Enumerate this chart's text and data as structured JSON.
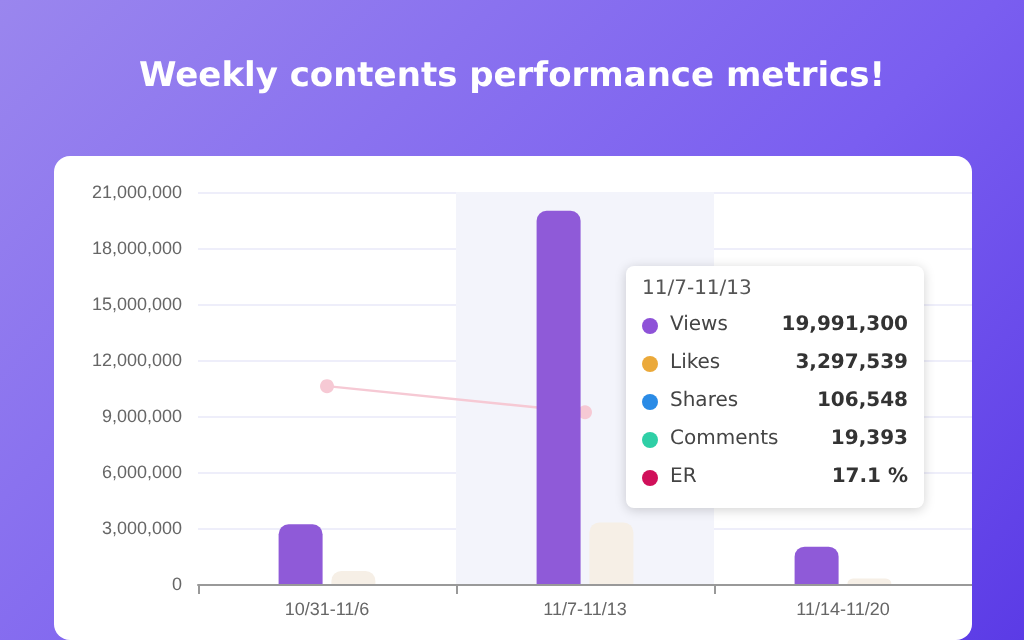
{
  "chart_data": {
    "type": "bar",
    "title": "Weekly contents performance metrics!",
    "categories": [
      "10/31-11/6",
      "11/7-11/13",
      "11/14-11/20"
    ],
    "series": [
      {
        "color": "#8f5ad8",
        "values": [
          3200000,
          19991300,
          2000000
        ]
      },
      {
        "color": "#f6efe6",
        "values": [
          700000,
          3297539,
          300000
        ]
      },
      {
        "type": "line",
        "color": "#f6c9d4",
        "marker": "circle",
        "values": [
          10600000,
          9200000,
          null
        ]
      }
    ],
    "ylim": [
      0,
      21000000
    ],
    "yticks": [
      0,
      {
        "value": 3000000,
        "label": "3,000,000"
      },
      {
        "value": 6000000,
        "label": "6,000,000"
      },
      {
        "value": 9000000,
        "label": "9,000,000"
      },
      {
        "value": 12000000,
        "label": "12,000,000"
      },
      {
        "value": 15000000,
        "label": "15,000,000"
      },
      {
        "value": 18000000,
        "label": "18,000,000"
      },
      {
        "value": 21000000,
        "label": "21,000,000"
      }
    ],
    "grid": "y",
    "bands": [
      {
        "axis": "x",
        "from": "11/7-11/13",
        "to": "11/7-11/13",
        "color": "#f3f4fb"
      }
    ],
    "annotations": [
      "11/7-11/13",
      "Views",
      "19,991,300",
      "Likes",
      "3,297,539",
      "Shares",
      "106,548",
      "Comments",
      "19,393",
      "ER",
      "17.1 %"
    ]
  }
}
